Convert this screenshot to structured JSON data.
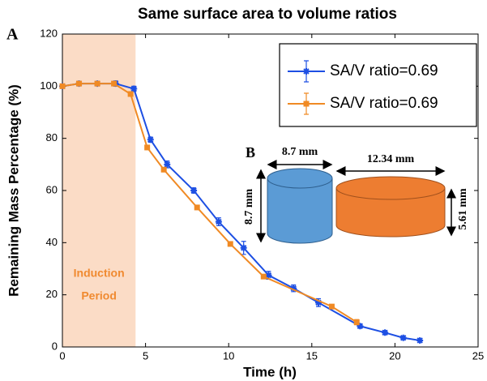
{
  "chart_data": {
    "type": "line",
    "title": "Same surface area to volume ratios",
    "panel_label": "A",
    "x_label": "Time (h)",
    "y_label": "Remaining Mass Percentage (%)",
    "xlim": [
      0,
      25
    ],
    "xticks": [
      0,
      5,
      10,
      15,
      20,
      25
    ],
    "ylim": [
      0,
      120
    ],
    "yticks": [
      0,
      20,
      40,
      60,
      80,
      100,
      120
    ],
    "legend": "upper right",
    "shaded_region": {
      "xlim": [
        0,
        4.4
      ],
      "color": "#fbdcc6",
      "label_lines": [
        "Induction",
        "Period"
      ],
      "label_color": "#f08a30"
    },
    "series": [
      {
        "name": "SA/V ratio=0.69",
        "color": "#1d4fe3",
        "marker": "asterisk",
        "x": [
          0,
          1.0,
          2.1,
          3.2,
          4.3,
          5.3,
          6.3,
          7.9,
          9.4,
          10.9,
          12.4,
          13.9,
          15.4,
          17.9,
          19.4,
          20.5,
          21.5
        ],
        "values": [
          100,
          101,
          101,
          101,
          99,
          79.5,
          70,
          60,
          48,
          38,
          27.5,
          22.5,
          17,
          8,
          5.5,
          3.5,
          2.5
        ],
        "errors": [
          0.5,
          0.8,
          0.8,
          1,
          1,
          1,
          1.3,
          1,
          1.5,
          2.5,
          1.5,
          1.3,
          1.5,
          0.8,
          0.8,
          0.7,
          0.7
        ]
      },
      {
        "name": "SA/V ratio=0.69",
        "color": "#f08a24",
        "marker": "square",
        "x": [
          0,
          1.0,
          2.1,
          3.1,
          4.1,
          5.1,
          6.1,
          8.1,
          10.1,
          12.1,
          16.2,
          17.7
        ],
        "values": [
          100,
          101,
          101,
          101,
          97,
          76.5,
          68,
          53.5,
          39.5,
          27,
          15.5,
          9.5
        ],
        "errors": [
          0.5,
          0.8,
          0.8,
          0.8,
          0.8,
          0.8,
          0.8,
          0.8,
          0.8,
          0.8,
          0.8,
          1
        ]
      }
    ]
  },
  "inset": {
    "label": "B",
    "cylinders": [
      {
        "width_label": "8.7 mm",
        "height_label": "8.7 mm",
        "color": "#5b9bd5"
      },
      {
        "width_label": "12.34 mm",
        "height_label": "5.61 mm",
        "color": "#ed7d31"
      }
    ]
  }
}
